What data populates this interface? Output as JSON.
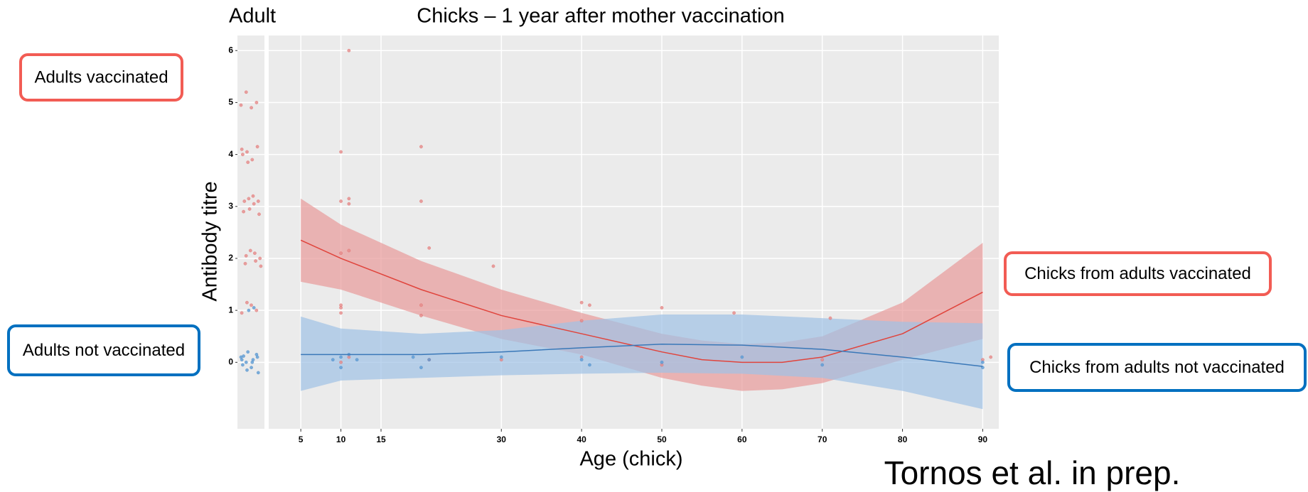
{
  "chart_data": {
    "type": "line",
    "panel_title": "Adult",
    "title": "Chicks – 1 year after mother vaccination",
    "x_label": "Age (chick)",
    "y_label": "Antibody titre",
    "citation": "Tornos et al. in prep.",
    "xlim": [
      1,
      92
    ],
    "ylim": [
      -1.28,
      6.29
    ],
    "xticks": [
      5,
      10,
      15,
      30,
      40,
      50,
      60,
      70,
      80,
      90
    ],
    "yticks": [
      0,
      1,
      2,
      3,
      4,
      5,
      6
    ],
    "grid": true,
    "series": [
      {
        "name": "Chicks from adults vaccinated",
        "adult_label": "Adults vaccinated",
        "color": "#e0443c",
        "band_color": "#e89a9a",
        "point_color": "#e58a8a",
        "x": [
          5,
          10,
          20,
          30,
          40,
          50,
          55,
          60,
          65,
          70,
          80,
          90
        ],
        "values": [
          2.35,
          2.0,
          1.4,
          0.9,
          0.55,
          0.2,
          0.05,
          0.0,
          0.0,
          0.1,
          0.55,
          1.35
        ],
        "upper": [
          3.15,
          2.65,
          1.95,
          1.4,
          0.95,
          0.55,
          0.42,
          0.35,
          0.38,
          0.5,
          1.15,
          2.3
        ],
        "lower": [
          1.55,
          1.4,
          0.9,
          0.45,
          0.15,
          -0.3,
          -0.45,
          -0.55,
          -0.52,
          -0.4,
          0.05,
          0.45
        ],
        "points_x": [
          10,
          10,
          11,
          11,
          10,
          11,
          10,
          10,
          10,
          11,
          20,
          20,
          21,
          20,
          20,
          29,
          40,
          41,
          50,
          59,
          71,
          40,
          21,
          30,
          40,
          50,
          70,
          90,
          91,
          11,
          10
        ],
        "points_y": [
          2.1,
          3.1,
          3.05,
          3.15,
          4.05,
          6.0,
          1.1,
          0.95,
          1.05,
          2.15,
          4.15,
          3.1,
          2.2,
          1.1,
          0.9,
          1.85,
          1.15,
          1.1,
          1.05,
          0.95,
          0.85,
          0.8,
          0.05,
          0.05,
          0.1,
          -0.05,
          0.05,
          0.05,
          0.1,
          0.1,
          0.0
        ],
        "adult_values": [
          4.95,
          5.2,
          4.9,
          5.0,
          4.1,
          4.05,
          3.9,
          4.15,
          4.0,
          3.85,
          3.2,
          3.1,
          2.9,
          3.15,
          3.05,
          2.85,
          3.1,
          2.95,
          2.1,
          2.0,
          1.9,
          2.15,
          1.95,
          1.85,
          2.05,
          1.1,
          1.0,
          0.95,
          1.15
        ]
      },
      {
        "name": "Chicks from adults not vaccinated",
        "adult_label": "Adults not vaccinated",
        "color": "#3a78b8",
        "band_color": "#9fc2e6",
        "point_color": "#5b9bd5",
        "x": [
          5,
          10,
          20,
          30,
          40,
          50,
          60,
          70,
          80,
          90
        ],
        "values": [
          0.15,
          0.15,
          0.15,
          0.2,
          0.28,
          0.35,
          0.33,
          0.25,
          0.1,
          -0.08
        ],
        "upper": [
          0.88,
          0.65,
          0.55,
          0.62,
          0.8,
          0.92,
          0.92,
          0.85,
          0.78,
          0.75
        ],
        "lower": [
          -0.55,
          -0.35,
          -0.3,
          -0.25,
          -0.22,
          -0.2,
          -0.22,
          -0.3,
          -0.55,
          -0.9
        ],
        "points_x": [
          9,
          10,
          11,
          12,
          10,
          19,
          20,
          21,
          30,
          41,
          40,
          50,
          60,
          70,
          90,
          90
        ],
        "points_y": [
          0.05,
          -0.1,
          0.15,
          0.05,
          0.1,
          0.1,
          -0.1,
          0.05,
          0.1,
          -0.05,
          0.05,
          0.0,
          0.1,
          -0.05,
          -0.1,
          0.0
        ],
        "adult_values": [
          0.1,
          0.0,
          -0.1,
          0.15,
          0.05,
          -0.15,
          0.0,
          0.1,
          -0.05,
          0.2,
          0.05,
          -0.2,
          0.12,
          1.0,
          1.05
        ]
      }
    ]
  }
}
